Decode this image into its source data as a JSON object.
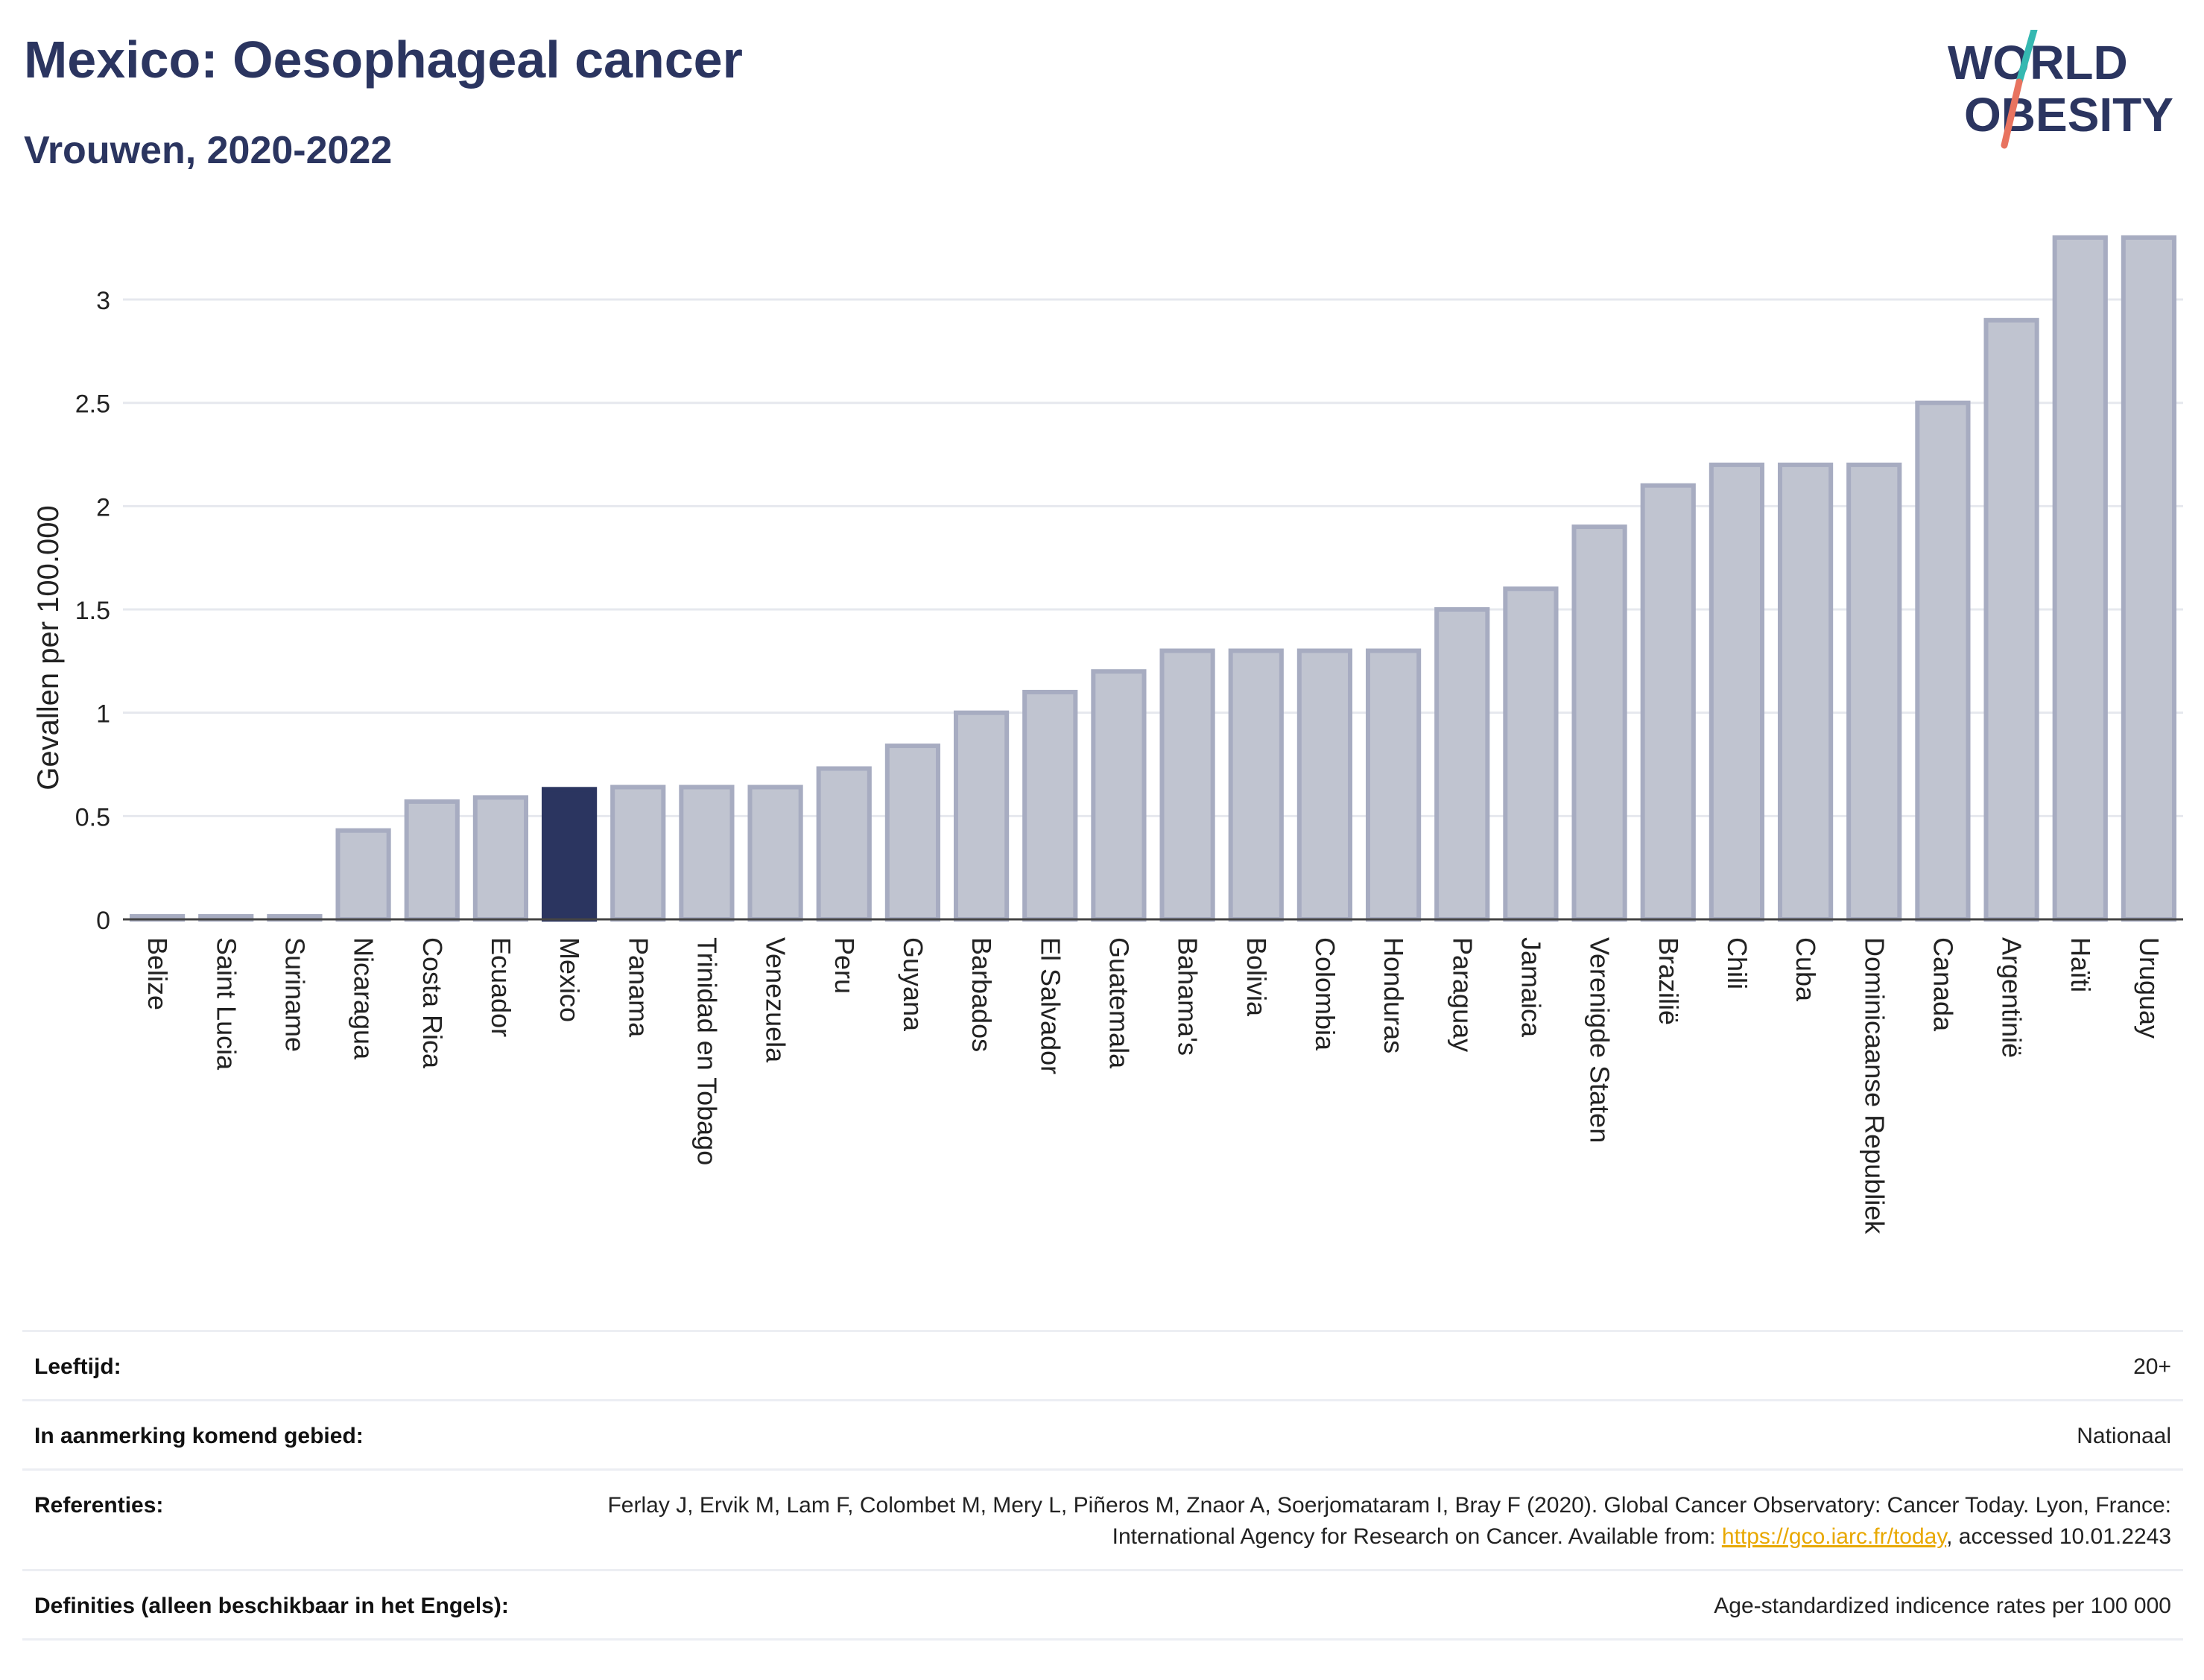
{
  "header": {
    "title": "Mexico: Oesophageal cancer",
    "subtitle": "Vrouwen, 2020-2022",
    "logo_top": "WORLD",
    "logo_bottom": "OBESITY"
  },
  "colors": {
    "title": "#2b3560",
    "bar": "#c0c4d0",
    "bar_stroke": "#a7acc1",
    "highlight": "#2b3560",
    "logo_teal": "#35b8b1",
    "logo_red": "#e8735f",
    "link": "#e8a800"
  },
  "chart_data": {
    "type": "bar",
    "ylabel": "Gevallen per 100.000",
    "ylim": [
      0,
      3.35
    ],
    "yticks": [
      0,
      0.5,
      1,
      1.5,
      2,
      2.5,
      3
    ],
    "ytick_labels": [
      "0",
      "0.5",
      "1",
      "1.5",
      "2",
      "2.5",
      "3"
    ],
    "grid": true,
    "highlight": "Mexico",
    "categories": [
      "Belize",
      "Saint Lucia",
      "Suriname",
      "Nicaragua",
      "Costa Rica",
      "Ecuador",
      "Mexico",
      "Panama",
      "Trinidad en Tobago",
      "Venezuela",
      "Peru",
      "Guyana",
      "Barbados",
      "El Salvador",
      "Guatemala",
      "Bahama's",
      "Bolivia",
      "Colombia",
      "Honduras",
      "Paraguay",
      "Jamaica",
      "Verenigde Staten",
      "Braziliё",
      "Chili",
      "Cuba",
      "Dominicaanse Republiek",
      "Canada",
      "Argentiniё",
      "Haïti",
      "Uruguay"
    ],
    "values": [
      0.01,
      0.01,
      0.01,
      0.43,
      0.57,
      0.59,
      0.63,
      0.64,
      0.64,
      0.64,
      0.73,
      0.84,
      1.0,
      1.1,
      1.2,
      1.3,
      1.3,
      1.3,
      1.3,
      1.5,
      1.6,
      1.9,
      2.1,
      2.2,
      2.2,
      2.2,
      2.5,
      2.9,
      3.3,
      3.3
    ]
  },
  "meta": {
    "age_label": "Leeftijd:",
    "age_value": "20+",
    "area_label": "In aanmerking komend gebied:",
    "area_value": "Nationaal",
    "ref_label": "Referenties:",
    "ref_text_1": "Ferlay J, Ervik M, Lam F, Colombet M, Mery L, Piñeros M, Znaor A, Soerjomataram I, Bray F (2020). Global Cancer Observatory: Cancer Today. Lyon, France: International Agency for Research on Cancer. Available from: ",
    "ref_link": "https://gco.iarc.fr/today",
    "ref_text_2": ", accessed 10.01.2243",
    "def_label": "Definities (alleen beschikbaar in het Engels):",
    "def_value": "Age-standardized indicence rates per 100 000"
  }
}
